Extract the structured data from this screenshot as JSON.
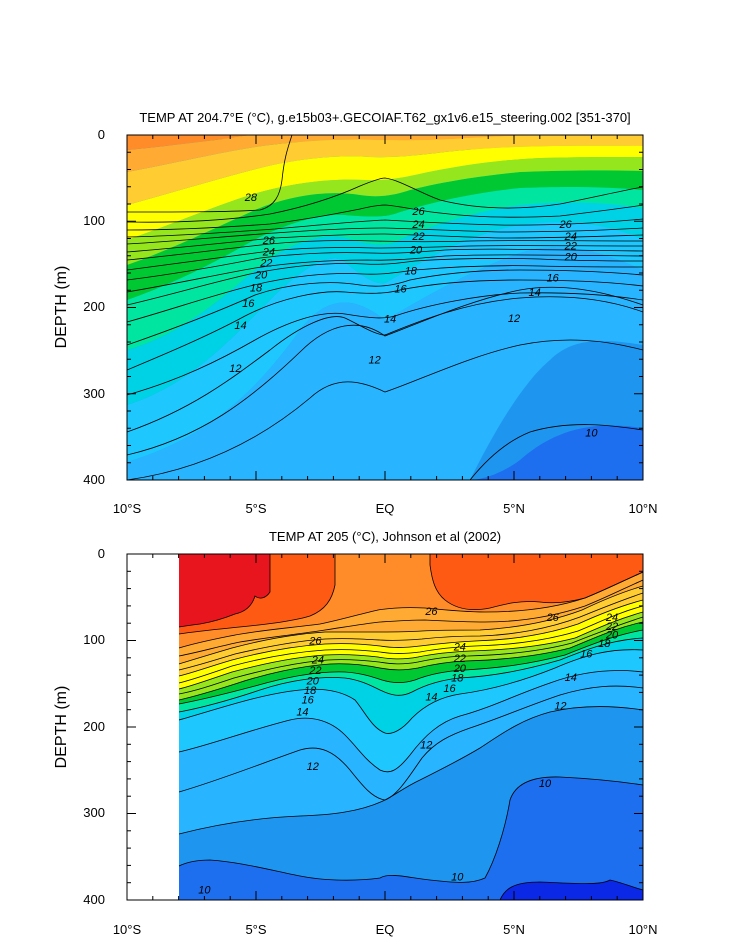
{
  "chart_data": [
    {
      "type": "contour",
      "title": "TEMP AT 204.7°E (°C), g.e15b03+.GECOIAF.T62_gx1v6.e15_steering.002 [351-370]",
      "xlabel": "",
      "ylabel": "DEPTH (m)",
      "xlim": [
        -10,
        10
      ],
      "ylim": [
        400,
        0
      ],
      "x_ticks": [
        "10°S",
        "5°S",
        "EQ",
        "5°N",
        "10°N"
      ],
      "y_ticks": [
        "0",
        "100",
        "200",
        "300",
        "400"
      ],
      "grid": false,
      "legend": "none",
      "colors": {
        "above_28": "#e8141e",
        "26_28": "#ff5a14",
        "24_26": "#ff8c28",
        "22_24": "#ffaa32",
        "20_22": "#ffcd32",
        "18_20": "#ffff00",
        "16_18": "#96e61e",
        "15_16": "#00c832",
        "14_15": "#00e6a0",
        "13_14": "#00d2e6",
        "12_13": "#1ec8ff",
        "11_12": "#28b4ff",
        "10_11": "#1e96f0",
        "below_10": "#1e6ef0",
        "below_9": "#0a28e6"
      },
      "contour_labels": [
        {
          "level": "28",
          "x": -5.2,
          "depth": 72
        },
        {
          "level": "26",
          "x": 1.3,
          "depth": 88
        },
        {
          "level": "24",
          "x": 1.3,
          "depth": 103
        },
        {
          "level": "22",
          "x": 1.3,
          "depth": 117
        },
        {
          "level": "20",
          "x": 1.2,
          "depth": 133
        },
        {
          "level": "18",
          "x": 1.0,
          "depth": 157
        },
        {
          "level": "16",
          "x": 0.6,
          "depth": 178
        },
        {
          "level": "14",
          "x": 0.2,
          "depth": 213
        },
        {
          "level": "12",
          "x": -0.4,
          "depth": 260
        },
        {
          "level": "26",
          "x": 7.0,
          "depth": 103
        },
        {
          "level": "24",
          "x": 7.2,
          "depth": 117
        },
        {
          "level": "22",
          "x": 7.2,
          "depth": 128
        },
        {
          "level": "20",
          "x": 7.2,
          "depth": 141
        },
        {
          "level": "16",
          "x": 6.5,
          "depth": 165
        },
        {
          "level": "14",
          "x": 5.8,
          "depth": 182
        },
        {
          "level": "12",
          "x": 5.0,
          "depth": 212
        },
        {
          "level": "10",
          "x": 8.0,
          "depth": 345
        },
        {
          "level": "26",
          "x": -4.5,
          "depth": 122
        },
        {
          "level": "24",
          "x": -4.5,
          "depth": 135
        },
        {
          "level": "22",
          "x": -4.6,
          "depth": 148
        },
        {
          "level": "20",
          "x": -4.8,
          "depth": 162
        },
        {
          "level": "18",
          "x": -5.0,
          "depth": 177
        },
        {
          "level": "16",
          "x": -5.3,
          "depth": 195
        },
        {
          "level": "14",
          "x": -5.6,
          "depth": 220
        },
        {
          "level": "12",
          "x": -5.8,
          "depth": 270
        }
      ]
    },
    {
      "type": "contour",
      "title": "TEMP AT 205 (°C), Johnson et al (2002)",
      "xlabel": "",
      "ylabel": "DEPTH (m)",
      "xlim": [
        -10,
        10
      ],
      "ylim": [
        400,
        0
      ],
      "x_ticks": [
        "10°S",
        "5°S",
        "EQ",
        "5°N",
        "10°N"
      ],
      "y_ticks": [
        "0",
        "100",
        "200",
        "300",
        "400"
      ],
      "grid": false,
      "legend": "none",
      "data_extent_x": [
        -8,
        10
      ],
      "contour_labels": [
        {
          "level": "26",
          "x": -2.7,
          "depth": 100
        },
        {
          "level": "24",
          "x": -2.6,
          "depth": 122
        },
        {
          "level": "22",
          "x": -2.7,
          "depth": 134
        },
        {
          "level": "20",
          "x": -2.8,
          "depth": 146
        },
        {
          "level": "18",
          "x": -2.9,
          "depth": 157
        },
        {
          "level": "16",
          "x": -3.0,
          "depth": 168
        },
        {
          "level": "14",
          "x": -3.2,
          "depth": 182
        },
        {
          "level": "12",
          "x": -2.8,
          "depth": 245
        },
        {
          "level": "26",
          "x": 1.8,
          "depth": 66
        },
        {
          "level": "24",
          "x": 2.9,
          "depth": 107
        },
        {
          "level": "22",
          "x": 2.9,
          "depth": 120
        },
        {
          "level": "20",
          "x": 2.9,
          "depth": 132
        },
        {
          "level": "18",
          "x": 2.8,
          "depth": 143
        },
        {
          "level": "16",
          "x": 2.5,
          "depth": 155
        },
        {
          "level": "14",
          "x": 1.8,
          "depth": 165
        },
        {
          "level": "12",
          "x": 1.6,
          "depth": 220
        },
        {
          "level": "26",
          "x": 6.5,
          "depth": 73
        },
        {
          "level": "24",
          "x": 8.8,
          "depth": 73
        },
        {
          "level": "22",
          "x": 8.8,
          "depth": 83
        },
        {
          "level": "20",
          "x": 8.8,
          "depth": 93
        },
        {
          "level": "18",
          "x": 8.5,
          "depth": 103
        },
        {
          "level": "16",
          "x": 7.8,
          "depth": 115
        },
        {
          "level": "14",
          "x": 7.2,
          "depth": 142
        },
        {
          "level": "12",
          "x": 6.8,
          "depth": 175
        },
        {
          "level": "10",
          "x": 6.2,
          "depth": 265
        },
        {
          "level": "10",
          "x": 2.8,
          "depth": 373
        },
        {
          "level": "10",
          "x": -7.0,
          "depth": 388
        }
      ]
    }
  ]
}
